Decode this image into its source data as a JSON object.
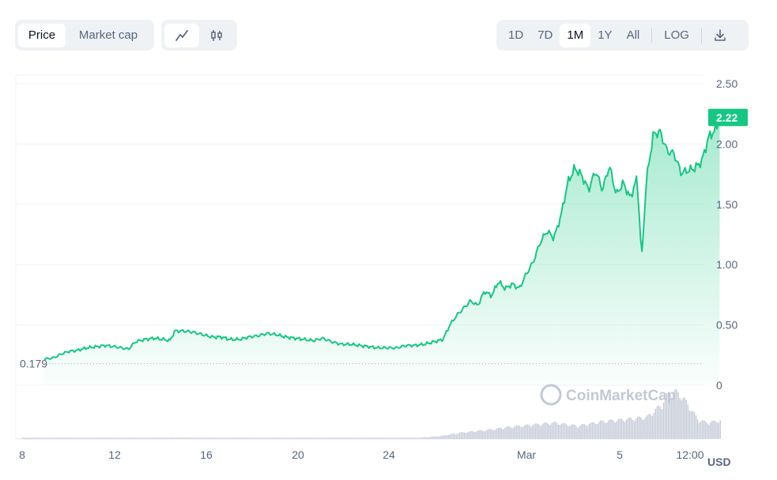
{
  "toolbar": {
    "type_options": [
      "Price",
      "Market cap"
    ],
    "type_selected": "Price",
    "chart_styles": [
      "line-chart-icon",
      "candlestick-icon"
    ],
    "ranges": [
      "1D",
      "7D",
      "1M",
      "1Y",
      "All"
    ],
    "range_selected": "1M",
    "log_label": "LOG",
    "download_icon": "download-icon"
  },
  "watermark": "CoinMarketCap",
  "colors": {
    "line": "#16c784",
    "badge": "#16c784",
    "volume": "#c6cbd8",
    "grid": "#f1f3f6"
  },
  "chart_data": {
    "type": "area",
    "x_ticks": [
      "8",
      "12",
      "16",
      "20",
      "24",
      "Mar",
      "5",
      "12:00"
    ],
    "y_ticks": [
      "2.50",
      "2.00",
      "1.50",
      "1.00",
      "0.50",
      "0"
    ],
    "ylim": [
      0,
      2.5
    ],
    "unit_label": "USD",
    "start_value": 0.179,
    "start_label": "0.179",
    "current_value": 2.22,
    "current_label": "2.22",
    "price": [
      [
        8.95,
        0.22
      ],
      [
        9.1,
        0.22
      ],
      [
        9.4,
        0.23
      ],
      [
        9.7,
        0.26
      ],
      [
        10.0,
        0.28
      ],
      [
        10.4,
        0.29
      ],
      [
        10.8,
        0.31
      ],
      [
        11.2,
        0.32
      ],
      [
        11.6,
        0.33
      ],
      [
        12.0,
        0.32
      ],
      [
        12.3,
        0.31
      ],
      [
        12.6,
        0.3
      ],
      [
        12.9,
        0.36
      ],
      [
        13.3,
        0.38
      ],
      [
        13.7,
        0.39
      ],
      [
        14.1,
        0.38
      ],
      [
        14.4,
        0.37
      ],
      [
        14.6,
        0.45
      ],
      [
        15.0,
        0.45
      ],
      [
        15.4,
        0.44
      ],
      [
        15.8,
        0.42
      ],
      [
        16.2,
        0.4
      ],
      [
        16.6,
        0.4
      ],
      [
        17.0,
        0.38
      ],
      [
        17.4,
        0.38
      ],
      [
        17.8,
        0.4
      ],
      [
        18.2,
        0.41
      ],
      [
        18.6,
        0.43
      ],
      [
        19.0,
        0.42
      ],
      [
        19.4,
        0.4
      ],
      [
        19.8,
        0.39
      ],
      [
        20.2,
        0.38
      ],
      [
        20.6,
        0.37
      ],
      [
        21.0,
        0.39
      ],
      [
        21.4,
        0.36
      ],
      [
        21.8,
        0.34
      ],
      [
        22.2,
        0.34
      ],
      [
        22.6,
        0.33
      ],
      [
        23.0,
        0.32
      ],
      [
        23.4,
        0.31
      ],
      [
        23.8,
        0.31
      ],
      [
        24.2,
        0.31
      ],
      [
        24.6,
        0.33
      ],
      [
        25.0,
        0.33
      ],
      [
        25.4,
        0.34
      ],
      [
        25.8,
        0.36
      ],
      [
        26.2,
        0.38
      ],
      [
        26.5,
        0.5
      ],
      [
        26.8,
        0.58
      ],
      [
        27.1,
        0.64
      ],
      [
        27.4,
        0.7
      ],
      [
        27.7,
        0.66
      ],
      [
        28.0,
        0.78
      ],
      [
        28.3,
        0.74
      ],
      [
        28.6,
        0.86
      ],
      [
        28.9,
        0.8
      ],
      [
        29.2,
        0.84
      ],
      [
        29.5,
        0.8
      ],
      [
        29.8,
        0.92
      ],
      [
        30.1,
        1.02
      ],
      [
        30.4,
        1.18
      ],
      [
        30.7,
        1.28
      ],
      [
        31.0,
        1.22
      ],
      [
        31.3,
        1.4
      ],
      [
        31.6,
        1.68
      ],
      [
        31.9,
        1.8
      ],
      [
        32.2,
        1.74
      ],
      [
        32.5,
        1.62
      ],
      [
        32.8,
        1.78
      ],
      [
        33.1,
        1.62
      ],
      [
        33.4,
        1.82
      ],
      [
        33.7,
        1.58
      ],
      [
        34.0,
        1.68
      ],
      [
        34.3,
        1.55
      ],
      [
        34.6,
        1.72
      ],
      [
        34.8,
        1.05
      ],
      [
        35.0,
        1.7
      ],
      [
        35.3,
        2.08
      ],
      [
        35.6,
        2.1
      ],
      [
        35.9,
        1.94
      ],
      [
        36.2,
        1.92
      ],
      [
        36.5,
        1.76
      ],
      [
        36.8,
        1.78
      ],
      [
        37.1,
        1.8
      ],
      [
        37.4,
        1.86
      ],
      [
        37.7,
        2.06
      ],
      [
        38.0,
        2.12
      ],
      [
        38.2,
        2.22
      ]
    ],
    "volume": [
      [
        8.95,
        0.02
      ],
      [
        11,
        0.02
      ],
      [
        13,
        0.02
      ],
      [
        15,
        0.025
      ],
      [
        17,
        0.02
      ],
      [
        19,
        0.02
      ],
      [
        21,
        0.02
      ],
      [
        23,
        0.02
      ],
      [
        25,
        0.02
      ],
      [
        26,
        0.05
      ],
      [
        27,
        0.12
      ],
      [
        28,
        0.16
      ],
      [
        29,
        0.22
      ],
      [
        30,
        0.26
      ],
      [
        31,
        0.3
      ],
      [
        32,
        0.24
      ],
      [
        33,
        0.32
      ],
      [
        34,
        0.36
      ],
      [
        35,
        0.4
      ],
      [
        35.6,
        0.62
      ],
      [
        36.0,
        0.88
      ],
      [
        36.4,
        0.84
      ],
      [
        36.8,
        0.62
      ],
      [
        37.2,
        0.36
      ],
      [
        37.6,
        0.3
      ],
      [
        38.2,
        0.34
      ]
    ],
    "volume_scale": [
      0,
      1
    ]
  }
}
